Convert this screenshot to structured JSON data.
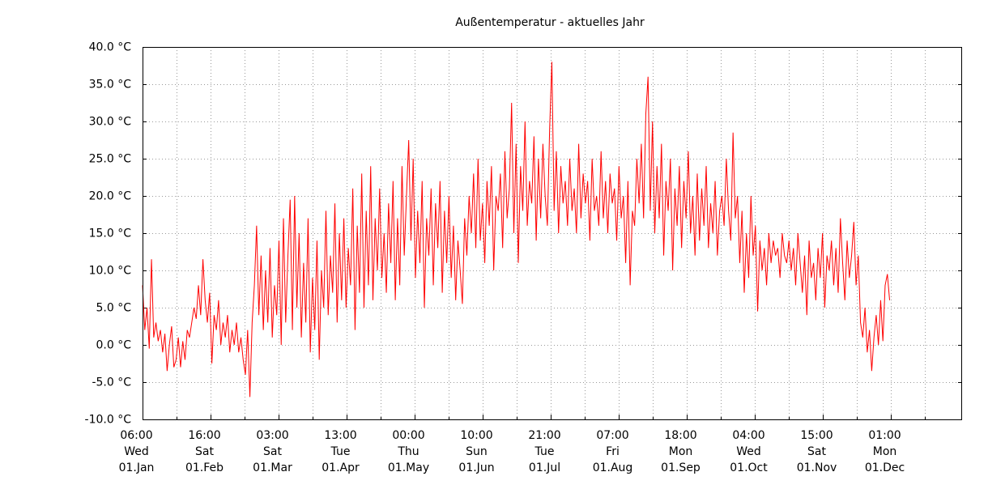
{
  "chart_data": {
    "type": "line",
    "title": "Außentemperatur - aktuelles Jahr",
    "color": "#ff0000",
    "grid": true,
    "xlim": [
      0,
      366.4
    ],
    "xticks": [
      {
        "value": 0,
        "label": [
          "06:00",
          "Wed",
          "01.Jan"
        ]
      },
      {
        "value": 30.4167,
        "label": [
          "16:00",
          "Sat",
          "01.Feb"
        ]
      },
      {
        "value": 60.8333,
        "label": [
          "03:00",
          "Sat",
          "01.Mar"
        ]
      },
      {
        "value": 91.25,
        "label": [
          "13:00",
          "Tue",
          "01.Apr"
        ]
      },
      {
        "value": 121.6667,
        "label": [
          "00:00",
          "Thu",
          "01.May"
        ]
      },
      {
        "value": 152.0833,
        "label": [
          "10:00",
          "Sun",
          "01.Jun"
        ]
      },
      {
        "value": 182.5,
        "label": [
          "21:00",
          "Tue",
          "01.Jul"
        ]
      },
      {
        "value": 212.9167,
        "label": [
          "07:00",
          "Fri",
          "01.Aug"
        ]
      },
      {
        "value": 243.3333,
        "label": [
          "18:00",
          "Mon",
          "01.Sep"
        ]
      },
      {
        "value": 273.75,
        "label": [
          "04:00",
          "Wed",
          "01.Oct"
        ]
      },
      {
        "value": 304.1667,
        "label": [
          "15:00",
          "Sat",
          "01.Nov"
        ]
      },
      {
        "value": 334.5833,
        "label": [
          "01:00",
          "Mon",
          "01.Dec"
        ]
      }
    ],
    "xminorticks": [
      15.2083,
      45.625,
      76.0417,
      106.4583,
      136.875,
      167.2917,
      197.7083,
      228.125,
      258.5417,
      288.9583,
      319.375,
      349.7917
    ],
    "ylim": [
      -10,
      40
    ],
    "yticks": [
      {
        "value": -10,
        "label": "-10.0 °C"
      },
      {
        "value": -5,
        "label": "-5.0 °C"
      },
      {
        "value": 0,
        "label": "0.0 °C"
      },
      {
        "value": 5,
        "label": "5.0 °C"
      },
      {
        "value": 10,
        "label": "10.0 °C"
      },
      {
        "value": 15,
        "label": "15.0 °C"
      },
      {
        "value": 20,
        "label": "20.0 °C"
      },
      {
        "value": 25,
        "label": "25.0 °C"
      },
      {
        "value": 30,
        "label": "30.0 °C"
      },
      {
        "value": 35,
        "label": "35.0 °C"
      },
      {
        "value": 40,
        "label": "40.0 °C"
      }
    ],
    "x": [
      0,
      1,
      2,
      3,
      4,
      5,
      6,
      7,
      8,
      9,
      10,
      11,
      12,
      13,
      14,
      15,
      16,
      17,
      18,
      19,
      20,
      21,
      22,
      23,
      24,
      25,
      26,
      27,
      28,
      29,
      30,
      31,
      32,
      33,
      34,
      35,
      36,
      37,
      38,
      39,
      40,
      41,
      42,
      43,
      44,
      45,
      46,
      47,
      48,
      49,
      50,
      51,
      52,
      53,
      54,
      55,
      56,
      57,
      58,
      59,
      60,
      61,
      62,
      63,
      64,
      65,
      66,
      67,
      68,
      69,
      70,
      71,
      72,
      73,
      74,
      75,
      76,
      77,
      78,
      79,
      80,
      81,
      82,
      83,
      84,
      85,
      86,
      87,
      88,
      89,
      90,
      91,
      92,
      93,
      94,
      95,
      96,
      97,
      98,
      99,
      100,
      101,
      102,
      103,
      104,
      105,
      106,
      107,
      108,
      109,
      110,
      111,
      112,
      113,
      114,
      115,
      116,
      117,
      118,
      119,
      120,
      121,
      122,
      123,
      124,
      125,
      126,
      127,
      128,
      129,
      130,
      131,
      132,
      133,
      134,
      135,
      136,
      137,
      138,
      139,
      140,
      141,
      142,
      143,
      144,
      145,
      146,
      147,
      148,
      149,
      150,
      151,
      152,
      153,
      154,
      155,
      156,
      157,
      158,
      159,
      160,
      161,
      162,
      163,
      164,
      165,
      166,
      167,
      168,
      169,
      170,
      171,
      172,
      173,
      174,
      175,
      176,
      177,
      178,
      179,
      180,
      181,
      182,
      183,
      184,
      185,
      186,
      187,
      188,
      189,
      190,
      191,
      192,
      193,
      194,
      195,
      196,
      197,
      198,
      199,
      200,
      201,
      202,
      203,
      204,
      205,
      206,
      207,
      208,
      209,
      210,
      211,
      212,
      213,
      214,
      215,
      216,
      217,
      218,
      219,
      220,
      221,
      222,
      223,
      224,
      225,
      226,
      227,
      228,
      229,
      230,
      231,
      232,
      233,
      234,
      235,
      236,
      237,
      238,
      239,
      240,
      241,
      242,
      243,
      244,
      245,
      246,
      247,
      248,
      249,
      250,
      251,
      252,
      253,
      254,
      255,
      256,
      257,
      258,
      259,
      260,
      261,
      262,
      263,
      264,
      265,
      266,
      267,
      268,
      269,
      270,
      271,
      272,
      273,
      274,
      275,
      276,
      277,
      278,
      279,
      280,
      281,
      282,
      283,
      284,
      285,
      286,
      287,
      288,
      289,
      290,
      291,
      292,
      293,
      294,
      295,
      296,
      297,
      298,
      299,
      300,
      301,
      302,
      303,
      304,
      305,
      306,
      307,
      308,
      309,
      310,
      311,
      312,
      313,
      314,
      315,
      316,
      317,
      318,
      319,
      320,
      321,
      322,
      323,
      324,
      325,
      326,
      327,
      328,
      329,
      330,
      331,
      332,
      333,
      334
    ],
    "values": [
      8,
      2,
      5,
      -0.5,
      11.5,
      1,
      3,
      0.5,
      2,
      -1,
      1.5,
      -3.5,
      0,
      2.5,
      -3,
      -2,
      1,
      -3,
      0.5,
      -2,
      2,
      1,
      3,
      5,
      3.5,
      8,
      4,
      11.5,
      6,
      3,
      7,
      -2.5,
      4,
      2,
      6,
      0,
      3,
      1,
      4,
      -1,
      2,
      0,
      3,
      -1,
      1,
      -2,
      -4,
      2,
      -7,
      3,
      8,
      16,
      4,
      12,
      2,
      10,
      3,
      13,
      1,
      8,
      4,
      14,
      0,
      17,
      3,
      12,
      19.5,
      2,
      20,
      5,
      15,
      1,
      11,
      3,
      17,
      -1,
      9,
      2,
      14,
      -2,
      10,
      5,
      18,
      4,
      12,
      7,
      19,
      3,
      15,
      6,
      17,
      5,
      13,
      8,
      21,
      2,
      16,
      7,
      23,
      5,
      18,
      8,
      24,
      6,
      17,
      10,
      21,
      9,
      15,
      7,
      19,
      11,
      22,
      6,
      17,
      8,
      24,
      12,
      20,
      27.5,
      14,
      25,
      9,
      18,
      11,
      22,
      5,
      17,
      12,
      21,
      8,
      19,
      13,
      22,
      7,
      18,
      11,
      20,
      9,
      16,
      6,
      14,
      10,
      5.5,
      17,
      12,
      20,
      15,
      23,
      13,
      25,
      14,
      19,
      11,
      22,
      16,
      24,
      10,
      20,
      18,
      23,
      13,
      26,
      17,
      21,
      32.5,
      15,
      27,
      11,
      24,
      18,
      30,
      16,
      22,
      19,
      28,
      14,
      25,
      17,
      27,
      20,
      16,
      29,
      38,
      18,
      26,
      15,
      24,
      19,
      22,
      16,
      25,
      18,
      21,
      15,
      27,
      17,
      23,
      19,
      22,
      14,
      25,
      18,
      20,
      16,
      26,
      17,
      22,
      15,
      23,
      19,
      21,
      14,
      24,
      17,
      20,
      11,
      22,
      8,
      18,
      16,
      25,
      19,
      27,
      17,
      31,
      36,
      18,
      30,
      15,
      24,
      17,
      27,
      12,
      22,
      18,
      25,
      10,
      21,
      16,
      24,
      13,
      22,
      17,
      26,
      15,
      20,
      12,
      23,
      14,
      21,
      16,
      24,
      13,
      19,
      15,
      22,
      12,
      18,
      20,
      16,
      25,
      18,
      14,
      28.5,
      17,
      20,
      11,
      18,
      7,
      15,
      9,
      20,
      12,
      16,
      4.5,
      14,
      10,
      13,
      8,
      15,
      11,
      14,
      12,
      13,
      9,
      15,
      12,
      11,
      14,
      10,
      13,
      8,
      15,
      11,
      7,
      12,
      4,
      14,
      9,
      11,
      6,
      13,
      9,
      15,
      5,
      12,
      10,
      14,
      8,
      13,
      7,
      17,
      11,
      6,
      14,
      9,
      12,
      16.5,
      8,
      12,
      3,
      1,
      5,
      -1,
      2,
      -3.5,
      1,
      4,
      0,
      6,
      0.5,
      8,
      9.5,
      6
    ]
  }
}
